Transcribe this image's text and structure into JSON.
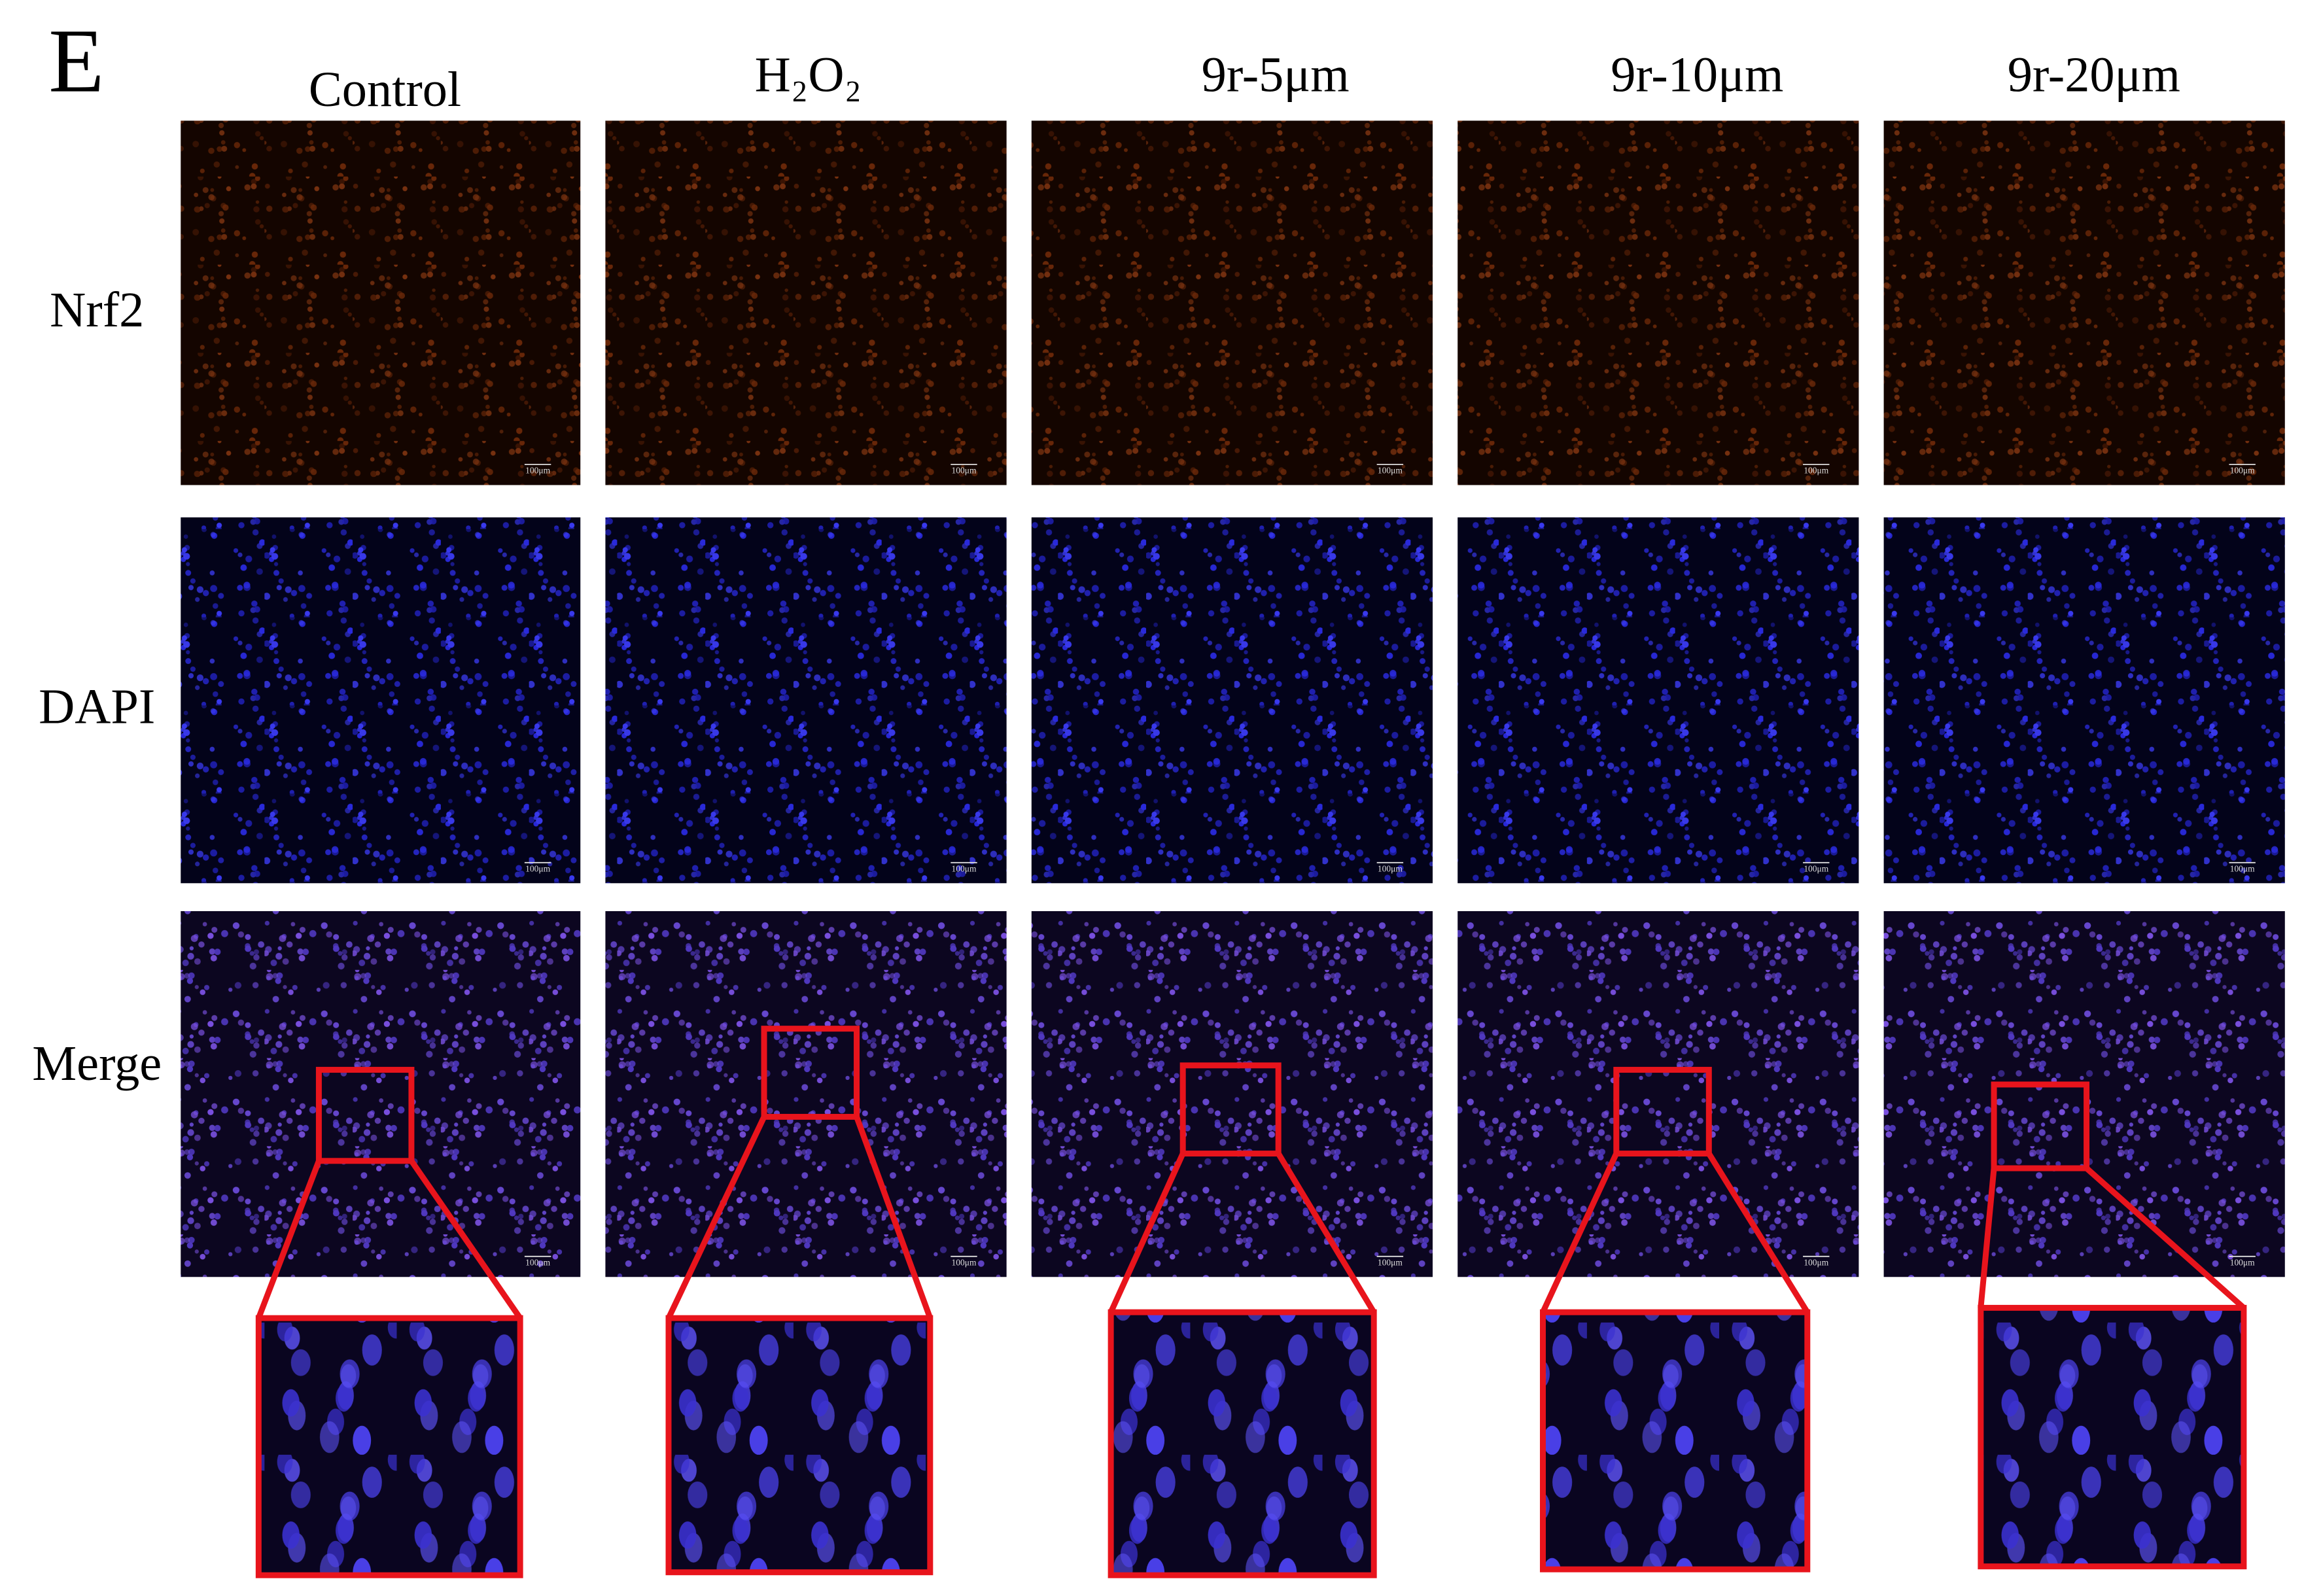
{
  "panel_label": "E",
  "columns": [
    "Control",
    "H₂O₂",
    "9r-5μm",
    "9r-10μm",
    "9r-20μm"
  ],
  "rows": [
    "Nrf2",
    "DAPI",
    "Merge"
  ],
  "scale_bar": "100μm"
}
